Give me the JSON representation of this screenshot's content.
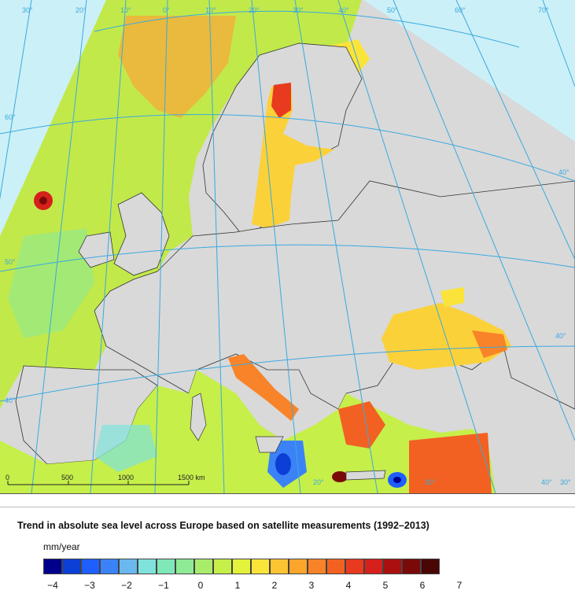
{
  "map": {
    "grid_color": "#3aa9e0",
    "land_color": "#d9d9d9",
    "water_color": "#ccf0f7",
    "border_color": "#333333",
    "longitude_labels": [
      "30°",
      "20°",
      "10°",
      "0°",
      "10°",
      "20°",
      "30°",
      "40°",
      "50°",
      "60°",
      "70°"
    ],
    "latitude_labels": [
      "60°",
      "50°",
      "40°",
      "40°",
      "40°"
    ],
    "bottom_labels": [
      "20°",
      "30°",
      "40°",
      "30°"
    ],
    "scale_bar": {
      "labels": [
        "0",
        "500",
        "1000",
        "1500 km"
      ]
    }
  },
  "legend": {
    "title": "Trend in absolute sea level across Europe based on satellite measurements (1992–2013)",
    "unit": "mm/year",
    "colors": [
      "#00008b",
      "#0b3fd6",
      "#1f5fff",
      "#3b82f6",
      "#6ab8ef",
      "#7fe3dc",
      "#7fe7b8",
      "#8eea95",
      "#a9ec6b",
      "#c6ef4a",
      "#e3f23a",
      "#fbe43a",
      "#fcc433",
      "#fba52d",
      "#f98329",
      "#f26121",
      "#e83a1f",
      "#d6201c",
      "#aa1010",
      "#7a0a0a",
      "#4a0505"
    ],
    "ticks": [
      "−4",
      "−3",
      "−2",
      "−1",
      "0",
      "1",
      "2",
      "3",
      "4",
      "5",
      "6",
      "7"
    ]
  }
}
